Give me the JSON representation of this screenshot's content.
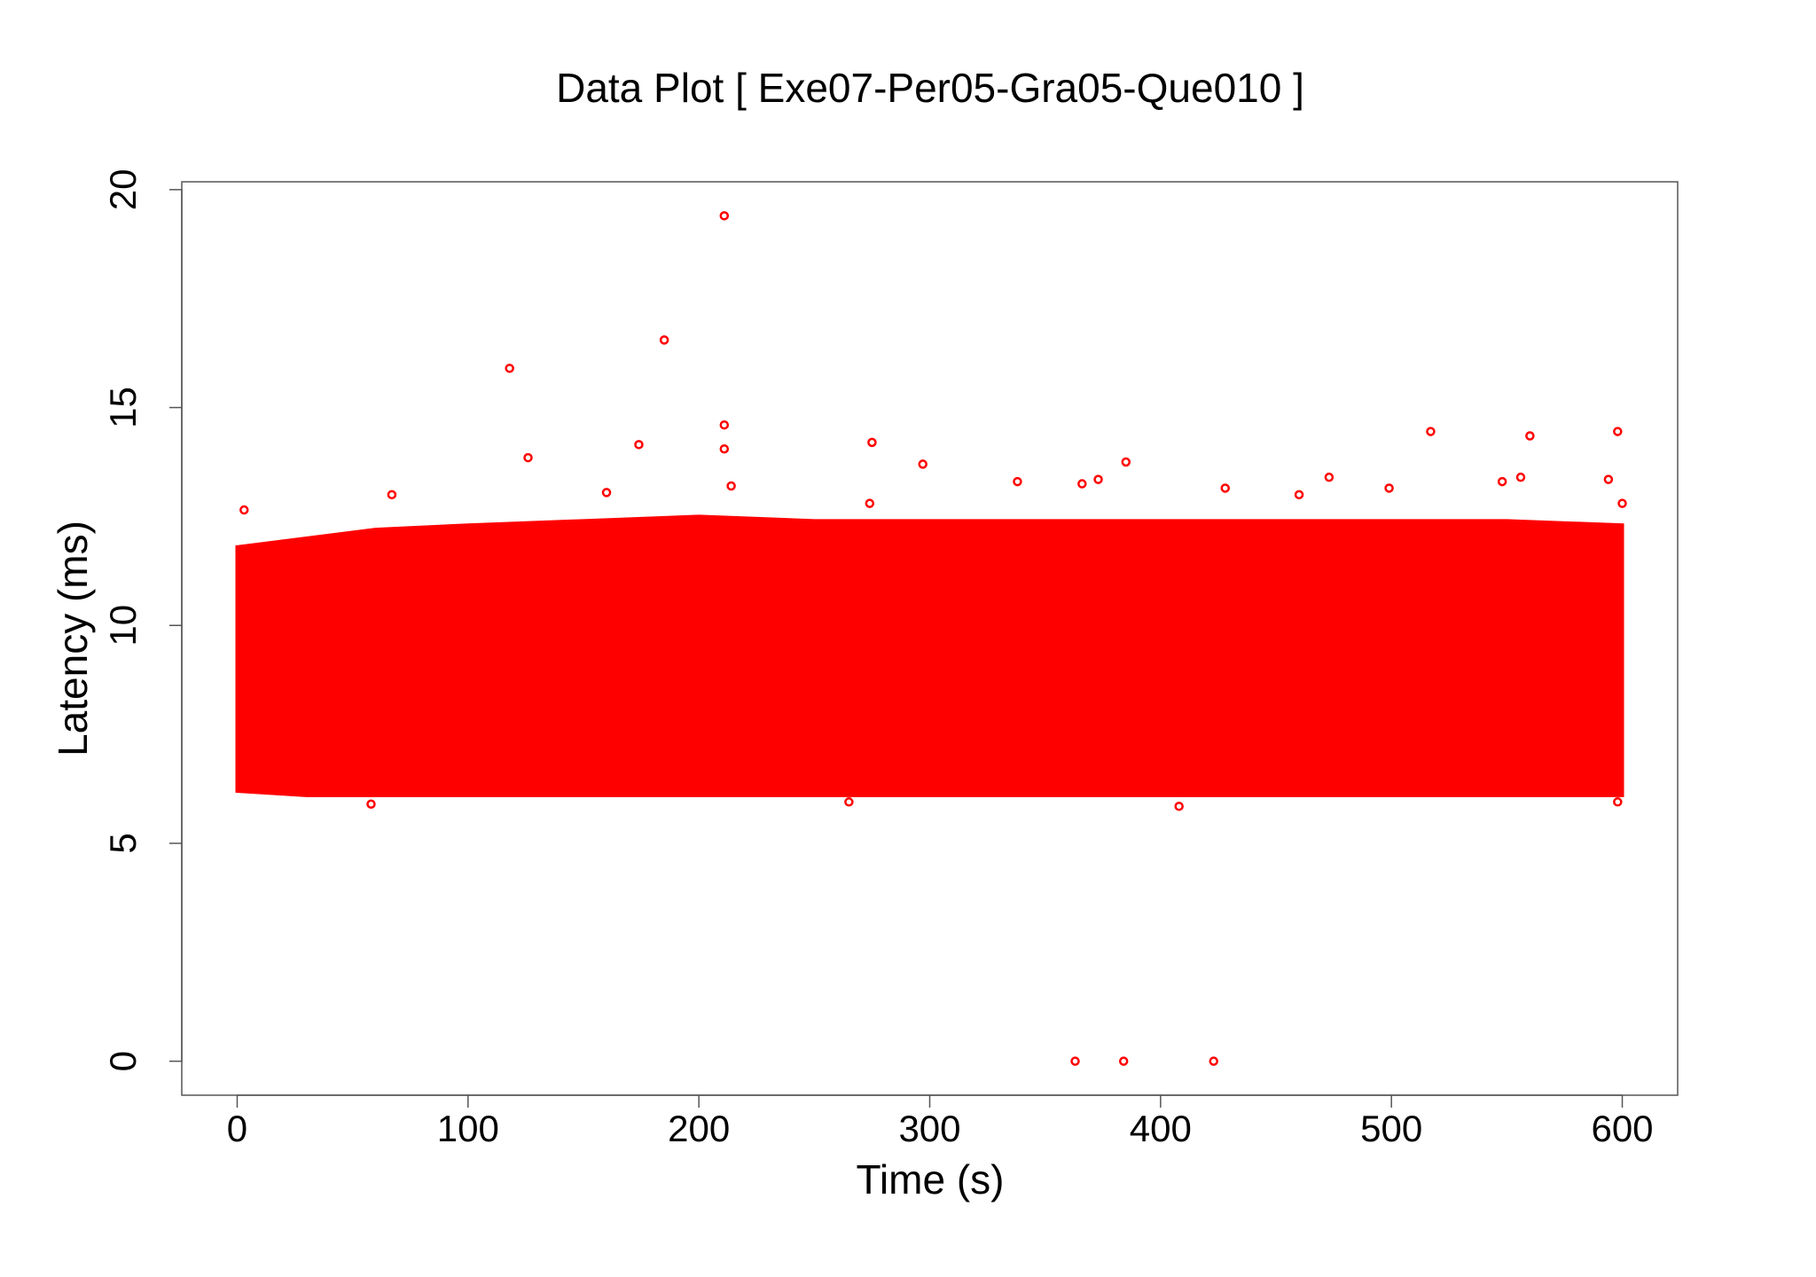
{
  "chart_data": {
    "type": "scatter",
    "title": "Data Plot [ Exe07-Per05-Gra05-Que010 ]",
    "x_label": "Time (s)",
    "y_label": "Latency (ms)",
    "color": "#ff0000",
    "xlim": [
      -24,
      624
    ],
    "ylim": [
      -0.78,
      20.18
    ],
    "xticks": [
      0,
      100,
      200,
      300,
      400,
      500,
      600
    ],
    "yticks": [
      0,
      5,
      10,
      15,
      20
    ],
    "density_band": {
      "x": [
        0,
        30,
        60,
        100,
        150,
        200,
        250,
        300,
        350,
        400,
        450,
        500,
        550,
        600
      ],
      "high": [
        11.8,
        12.0,
        12.2,
        12.3,
        12.4,
        12.5,
        12.4,
        12.4,
        12.4,
        12.4,
        12.4,
        12.4,
        12.4,
        12.3
      ],
      "low": [
        6.2,
        6.1,
        6.1,
        6.1,
        6.1,
        6.1,
        6.1,
        6.1,
        6.1,
        6.1,
        6.1,
        6.1,
        6.1,
        6.1
      ]
    },
    "x": [
      3,
      118,
      126,
      174,
      185,
      211,
      211,
      211,
      214,
      160,
      67,
      275,
      297,
      338,
      366,
      373,
      385,
      428,
      460,
      473,
      499,
      517,
      548,
      556,
      560,
      594,
      598,
      600,
      363,
      384,
      423,
      58,
      265,
      408,
      598,
      274
    ],
    "values": [
      12.65,
      15.9,
      13.85,
      14.15,
      16.55,
      19.4,
      14.6,
      14.05,
      13.2,
      13.05,
      13.0,
      14.2,
      13.7,
      13.3,
      13.25,
      13.35,
      13.75,
      13.15,
      13.0,
      13.4,
      13.15,
      14.45,
      13.3,
      13.4,
      14.35,
      13.35,
      14.45,
      12.8,
      0,
      0,
      0,
      5.9,
      5.95,
      5.85,
      5.95,
      12.8
    ]
  }
}
